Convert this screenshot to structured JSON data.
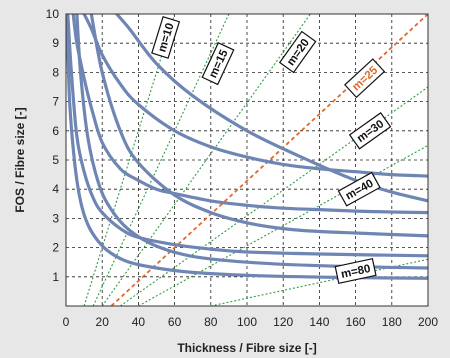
{
  "chart_data": {
    "type": "line",
    "title": "",
    "xlabel": "Thickness / Fibre size [-]",
    "ylabel": "FOS / Fibre size [-]",
    "xlim": [
      0,
      200
    ],
    "ylim": [
      0,
      10
    ],
    "xticks": [
      "0",
      "20",
      "40",
      "60",
      "80",
      "100",
      "120",
      "140",
      "160",
      "180",
      "200"
    ],
    "yticks": [
      "1",
      "2",
      "3",
      "4",
      "5",
      "6",
      "7",
      "8",
      "9",
      "10"
    ],
    "grid": true,
    "colors": {
      "curve": "#6f86b4",
      "guide_line": "#2f9d45",
      "highlight_line": "#e06a2c",
      "plot_background": "#ffffff",
      "page_background": "#e7e7e8"
    },
    "curves": [
      {
        "points": [
          [
            4,
            10
          ],
          [
            6,
            9.0
          ],
          [
            10,
            7.8
          ],
          [
            14,
            6.8
          ],
          [
            20,
            5.6
          ],
          [
            30,
            4.7
          ],
          [
            40,
            4.3
          ],
          [
            50,
            4.0
          ],
          [
            60,
            3.85
          ],
          [
            80,
            3.6
          ],
          [
            100,
            3.45
          ],
          [
            120,
            3.35
          ],
          [
            140,
            3.3
          ],
          [
            160,
            3.25
          ],
          [
            180,
            3.22
          ],
          [
            200,
            3.2
          ]
        ]
      },
      {
        "points": [
          [
            1,
            10
          ],
          [
            3,
            8.0
          ],
          [
            6,
            5.8
          ],
          [
            10,
            4.6
          ],
          [
            15,
            3.7
          ],
          [
            20,
            3.2
          ],
          [
            30,
            2.65
          ],
          [
            40,
            2.35
          ],
          [
            60,
            2.1
          ],
          [
            80,
            1.95
          ],
          [
            100,
            1.85
          ],
          [
            140,
            1.78
          ],
          [
            200,
            1.72
          ]
        ]
      },
      {
        "points": [
          [
            0.5,
            10
          ],
          [
            2,
            7.0
          ],
          [
            5,
            4.8
          ],
          [
            8,
            3.6
          ],
          [
            12,
            2.8
          ],
          [
            18,
            2.2
          ],
          [
            25,
            1.8
          ],
          [
            35,
            1.5
          ],
          [
            50,
            1.3
          ],
          [
            70,
            1.15
          ],
          [
            100,
            1.05
          ],
          [
            150,
            0.98
          ],
          [
            200,
            0.95
          ]
        ]
      },
      {
        "points": [
          [
            10,
            10
          ],
          [
            14,
            9.5
          ],
          [
            20,
            8.6
          ],
          [
            30,
            7.6
          ],
          [
            40,
            6.9
          ],
          [
            60,
            6.0
          ],
          [
            80,
            5.45
          ],
          [
            100,
            5.1
          ],
          [
            120,
            4.85
          ],
          [
            140,
            4.7
          ],
          [
            160,
            4.6
          ],
          [
            180,
            4.5
          ],
          [
            200,
            4.45
          ]
        ]
      },
      {
        "points": [
          [
            28,
            10
          ],
          [
            35,
            9.5
          ],
          [
            50,
            8.3
          ],
          [
            70,
            7.2
          ],
          [
            100,
            6.0
          ],
          [
            130,
            5.1
          ],
          [
            160,
            4.3
          ],
          [
            180,
            3.9
          ],
          [
            200,
            3.6
          ]
        ]
      },
      {
        "points": [
          [
            14,
            10
          ],
          [
            20,
            8.0
          ],
          [
            30,
            6.0
          ],
          [
            40,
            4.9
          ],
          [
            60,
            3.8
          ],
          [
            80,
            3.2
          ],
          [
            100,
            2.85
          ],
          [
            120,
            2.65
          ],
          [
            140,
            2.55
          ],
          [
            160,
            2.5
          ],
          [
            180,
            2.45
          ],
          [
            200,
            2.4
          ]
        ]
      },
      {
        "points": [
          [
            6,
            10
          ],
          [
            8,
            8.0
          ],
          [
            12,
            5.8
          ],
          [
            18,
            4.2
          ],
          [
            25,
            3.3
          ],
          [
            35,
            2.6
          ],
          [
            50,
            2.05
          ],
          [
            70,
            1.7
          ],
          [
            100,
            1.5
          ],
          [
            140,
            1.38
          ],
          [
            200,
            1.3
          ]
        ]
      }
    ],
    "guide_lines": [
      {
        "name": "m=10",
        "label": "m=10",
        "highlight": false,
        "from": [
          10,
          0
        ],
        "to": [
          60,
          10
        ],
        "label_at": [
          55,
          9.2
        ]
      },
      {
        "name": "m=15",
        "label": "m=15",
        "highlight": false,
        "from": [
          15,
          0
        ],
        "to": [
          90,
          10
        ],
        "label_at": [
          84,
          8.3
        ]
      },
      {
        "name": "m=20",
        "label": "m=20",
        "highlight": false,
        "from": [
          20,
          0
        ],
        "to": [
          135,
          10
        ],
        "label_at": [
          128,
          8.7
        ]
      },
      {
        "name": "m=25",
        "label": "m=25",
        "highlight": true,
        "from": [
          25,
          0
        ],
        "to": [
          200,
          10
        ],
        "label_at": [
          165,
          7.8
        ]
      },
      {
        "name": "m=30",
        "label": "m=30",
        "highlight": false,
        "from": [
          30,
          0
        ],
        "to": [
          200,
          7.5
        ],
        "label_at": [
          168,
          6.0
        ]
      },
      {
        "name": "m=40",
        "label": "m=40",
        "highlight": false,
        "from": [
          40,
          0
        ],
        "to": [
          200,
          5.5
        ],
        "label_at": [
          162,
          4.0
        ]
      },
      {
        "name": "m=80",
        "label": "m=80",
        "highlight": false,
        "from": [
          80,
          0
        ],
        "to": [
          200,
          1.6
        ],
        "label_at": [
          160,
          1.2
        ]
      }
    ]
  }
}
